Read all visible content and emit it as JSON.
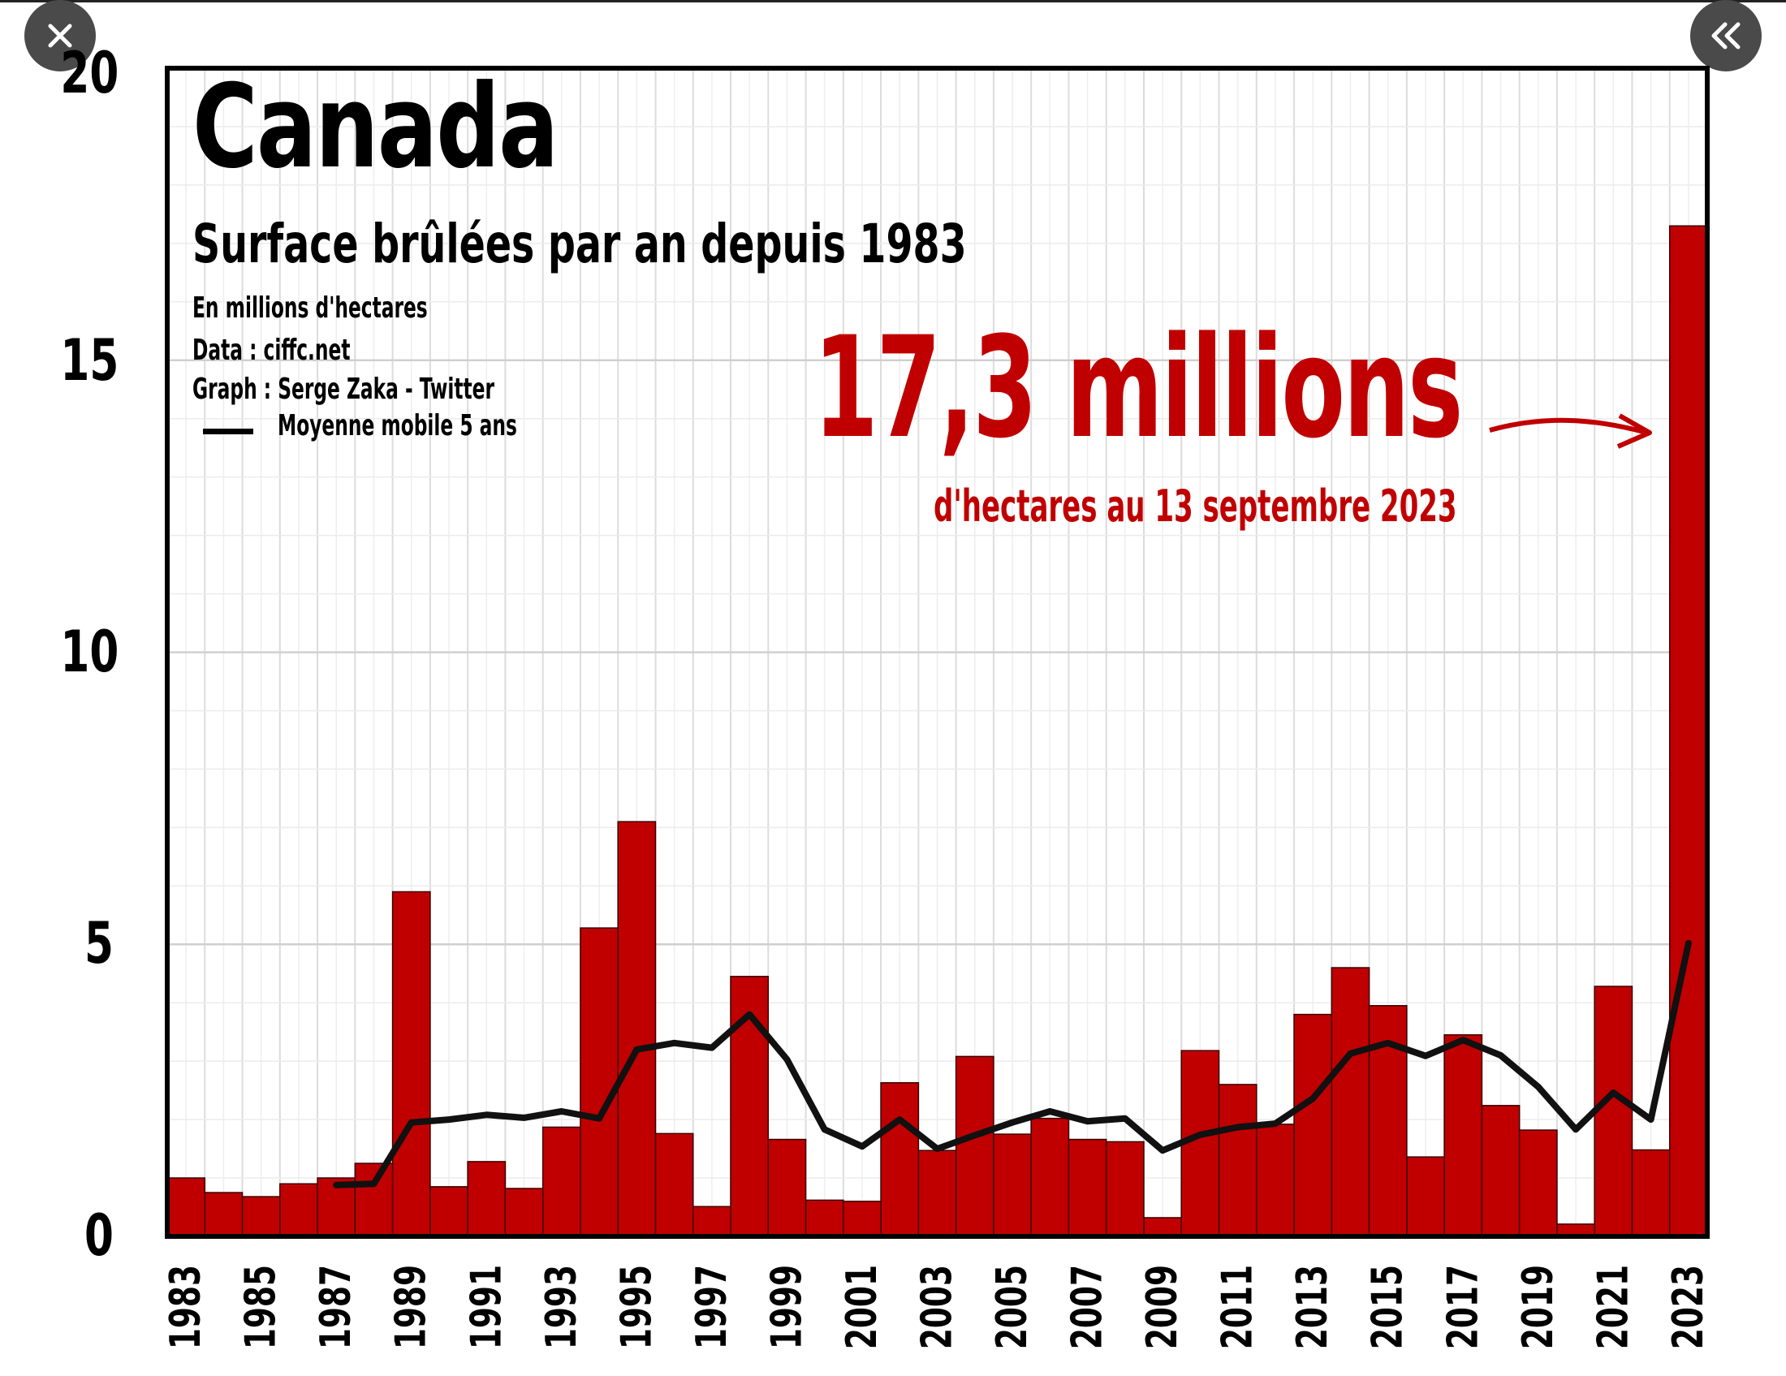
{
  "chart_data": {
    "type": "bar",
    "title": "Canada",
    "subtitle": "Surface brûlées par an depuis 1983",
    "unit_note": "En millions d'hectares",
    "source": "Data : ciffc.net",
    "credit": "Graph : Serge Zaka - Twitter",
    "legend": "Moyenne mobile 5 ans",
    "annotation": "17,3 millions",
    "annotation_sub": "d'hectares au 13 septembre 2023",
    "ylim": [
      0,
      20
    ],
    "yticks": [
      "0",
      "5",
      "10",
      "15",
      "20"
    ],
    "xtick_labels": [
      "1983",
      "1985",
      "1987",
      "1989",
      "1991",
      "1993",
      "1995",
      "1997",
      "1999",
      "2001",
      "2003",
      "2005",
      "2007",
      "2009",
      "2011",
      "2013",
      "2015",
      "2017",
      "2019",
      "2021",
      "2023"
    ],
    "categories": [
      "1983",
      "1984",
      "1985",
      "1986",
      "1987",
      "1988",
      "1989",
      "1990",
      "1991",
      "1992",
      "1993",
      "1994",
      "1995",
      "1996",
      "1997",
      "1998",
      "1999",
      "2000",
      "2001",
      "2002",
      "2003",
      "2004",
      "2005",
      "2006",
      "2007",
      "2008",
      "2009",
      "2010",
      "2011",
      "2012",
      "2013",
      "2014",
      "2015",
      "2016",
      "2017",
      "2018",
      "2019",
      "2020",
      "2021",
      "2022",
      "2023"
    ],
    "series": [
      {
        "name": "Surface brûlée",
        "values": [
          1.0,
          0.75,
          0.68,
          0.9,
          1.0,
          1.25,
          5.9,
          0.85,
          1.28,
          0.82,
          1.87,
          5.28,
          7.1,
          1.76,
          0.51,
          4.45,
          1.66,
          0.62,
          0.6,
          2.63,
          1.47,
          3.08,
          1.75,
          2.02,
          1.66,
          1.62,
          0.32,
          3.18,
          2.6,
          1.92,
          3.8,
          4.6,
          3.95,
          1.36,
          3.45,
          2.24,
          1.82,
          0.21,
          4.28,
          1.48,
          17.3
        ]
      },
      {
        "name": "Moyenne mobile 5 ans",
        "values": [
          null,
          null,
          null,
          null,
          0.88,
          0.9,
          1.95,
          2.0,
          2.08,
          2.03,
          2.14,
          2.02,
          3.2,
          3.31,
          3.23,
          3.8,
          3.03,
          1.83,
          1.54,
          2.0,
          1.5,
          1.73,
          1.95,
          2.14,
          1.97,
          2.02,
          1.47,
          1.74,
          1.87,
          1.93,
          2.36,
          3.13,
          3.31,
          3.09,
          3.36,
          3.1,
          2.56,
          1.83,
          2.46,
          2.0,
          5.02
        ]
      }
    ]
  },
  "ui": {
    "close_icon": "close-icon",
    "collapse_icon": "double-chevron-left-icon"
  },
  "colors": {
    "bar": "#c00000",
    "line": "#111111",
    "annotation": "#c00000"
  }
}
